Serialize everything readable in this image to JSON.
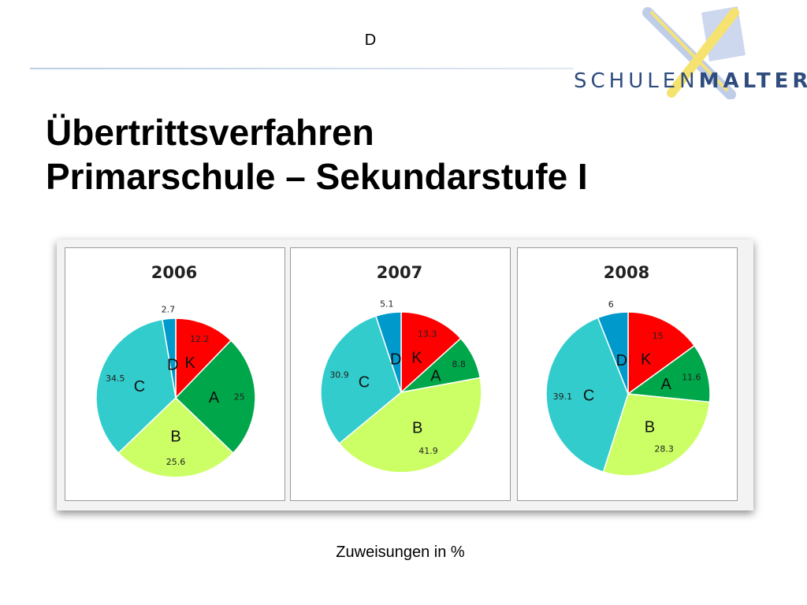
{
  "header": {
    "letter": "D",
    "logo_text_1": "SCHULEN",
    "logo_text_2": "MALTERS"
  },
  "title": {
    "line1": "Übertrittsverfahren",
    "line2": "Primarschule – Sekundarstufe I"
  },
  "caption": "Zuweisungen in %",
  "colors": {
    "K": "#ff0000",
    "A": "#00a64a",
    "B": "#ccff66",
    "C": "#33cccc",
    "D": "#0099cc"
  },
  "chart_data": [
    {
      "type": "pie",
      "title": "2006",
      "slices": [
        {
          "label": "K",
          "value": 12.2
        },
        {
          "label": "A",
          "value": 25
        },
        {
          "label": "B",
          "value": 25.6
        },
        {
          "label": "C",
          "value": 34.5
        },
        {
          "label": "D",
          "value": 2.7
        }
      ]
    },
    {
      "type": "pie",
      "title": "2007",
      "slices": [
        {
          "label": "K",
          "value": 13.3
        },
        {
          "label": "A",
          "value": 8.8
        },
        {
          "label": "B",
          "value": 41.9
        },
        {
          "label": "C",
          "value": 30.9
        },
        {
          "label": "D",
          "value": 5.1
        }
      ]
    },
    {
      "type": "pie",
      "title": "2008",
      "slices": [
        {
          "label": "K",
          "value": 15
        },
        {
          "label": "A",
          "value": 11.6
        },
        {
          "label": "B",
          "value": 28.3
        },
        {
          "label": "C",
          "value": 39.1
        },
        {
          "label": "D",
          "value": 6
        }
      ]
    }
  ]
}
